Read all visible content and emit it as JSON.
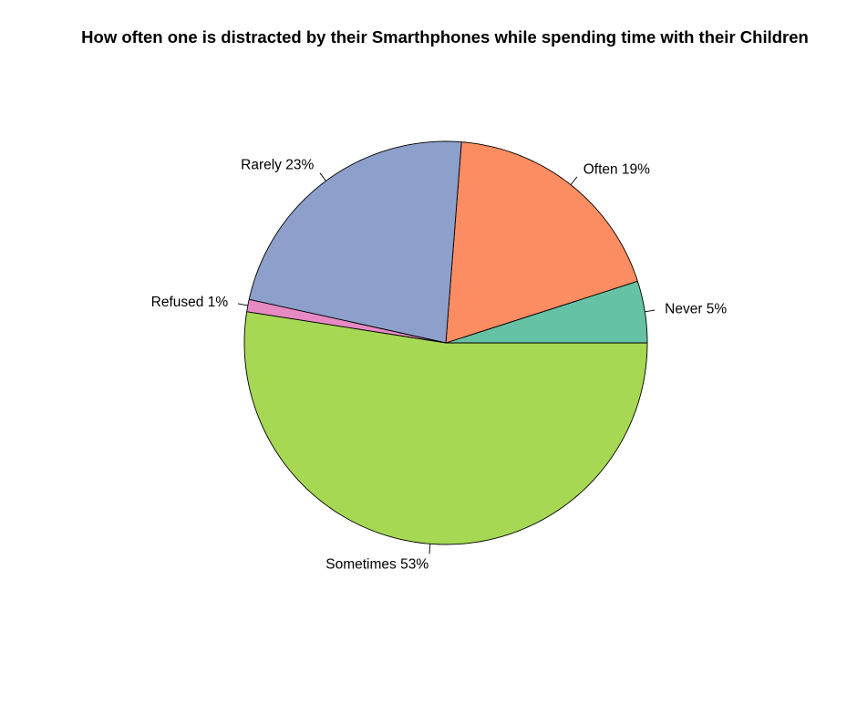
{
  "chart_data": {
    "type": "pie",
    "title": "How often one is distracted by their Smarthphones while spending time with their Children",
    "slices": [
      {
        "category": "Never",
        "percent": 5,
        "label": "Never 5%",
        "color": "#66C2A5"
      },
      {
        "category": "Often",
        "percent": 19,
        "label": "Often 19%",
        "color": "#FC8D62"
      },
      {
        "category": "Rarely",
        "percent": 23,
        "label": "Rarely 23%",
        "color": "#8DA0CB"
      },
      {
        "category": "Refused",
        "percent": 1,
        "label": "Refused 1%",
        "color": "#E78AC3"
      },
      {
        "category": "Sometimes",
        "percent": 53,
        "label": "Sometimes 53%",
        "color": "#A6D854"
      }
    ],
    "start_angle_deg": 0,
    "direction": "counterclockwise",
    "border_color": "#000000"
  }
}
